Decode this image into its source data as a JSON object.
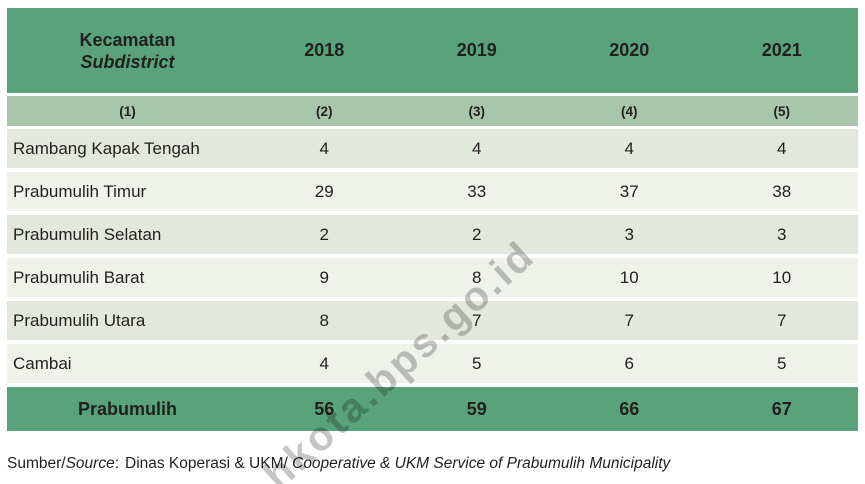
{
  "header": {
    "col1_line1": "Kecamatan",
    "col1_line2": "Subdistrict",
    "years": [
      "2018",
      "2019",
      "2020",
      "2021"
    ],
    "col_numbers": [
      "(1)",
      "(2)",
      "(3)",
      "(4)",
      "(5)"
    ]
  },
  "table": {
    "rows": [
      {
        "name": "Rambang Kapak Tengah",
        "values": [
          "4",
          "4",
          "4",
          "4"
        ]
      },
      {
        "name": "Prabumulih Timur",
        "values": [
          "29",
          "33",
          "37",
          "38"
        ]
      },
      {
        "name": "Prabumulih Selatan",
        "values": [
          "2",
          "2",
          "3",
          "3"
        ]
      },
      {
        "name": "Prabumulih Barat",
        "values": [
          "9",
          "8",
          "10",
          "10"
        ]
      },
      {
        "name": "Prabumulih Utara",
        "values": [
          "8",
          "7",
          "7",
          "7"
        ]
      },
      {
        "name": "Cambai",
        "values": [
          "4",
          "5",
          "6",
          "5"
        ]
      }
    ],
    "total": {
      "name": "Prabumulih",
      "values": [
        "56",
        "59",
        "66",
        "67"
      ]
    }
  },
  "source": {
    "label_id": "Sumber/",
    "label_en": "Source",
    "colon": ":",
    "value_id": "Dinas Koperasi & UKM/",
    "value_en": " Cooperative & UKM Service of Prabumulih Municipality"
  },
  "watermark": {
    "text": "hkota.bps.go.id"
  },
  "colors": {
    "header_green": "#58a379",
    "subheader_sage": "#a8c6aa",
    "row_odd": "#e3e8de",
    "row_even": "#eff1eb",
    "text": "#231f20",
    "watermark_gray": "#6e6e6e"
  },
  "chart_data": {
    "type": "table",
    "columns": [
      "Kecamatan/Subdistrict",
      "2018",
      "2019",
      "2020",
      "2021"
    ],
    "rows": [
      [
        "Rambang Kapak Tengah",
        4,
        4,
        4,
        4
      ],
      [
        "Prabumulih Timur",
        29,
        33,
        37,
        38
      ],
      [
        "Prabumulih Selatan",
        2,
        2,
        3,
        3
      ],
      [
        "Prabumulih Barat",
        9,
        8,
        10,
        10
      ],
      [
        "Prabumulih Utara",
        8,
        7,
        7,
        7
      ],
      [
        "Cambai",
        4,
        5,
        6,
        5
      ]
    ],
    "total_row": [
      "Prabumulih",
      56,
      59,
      66,
      67
    ]
  }
}
